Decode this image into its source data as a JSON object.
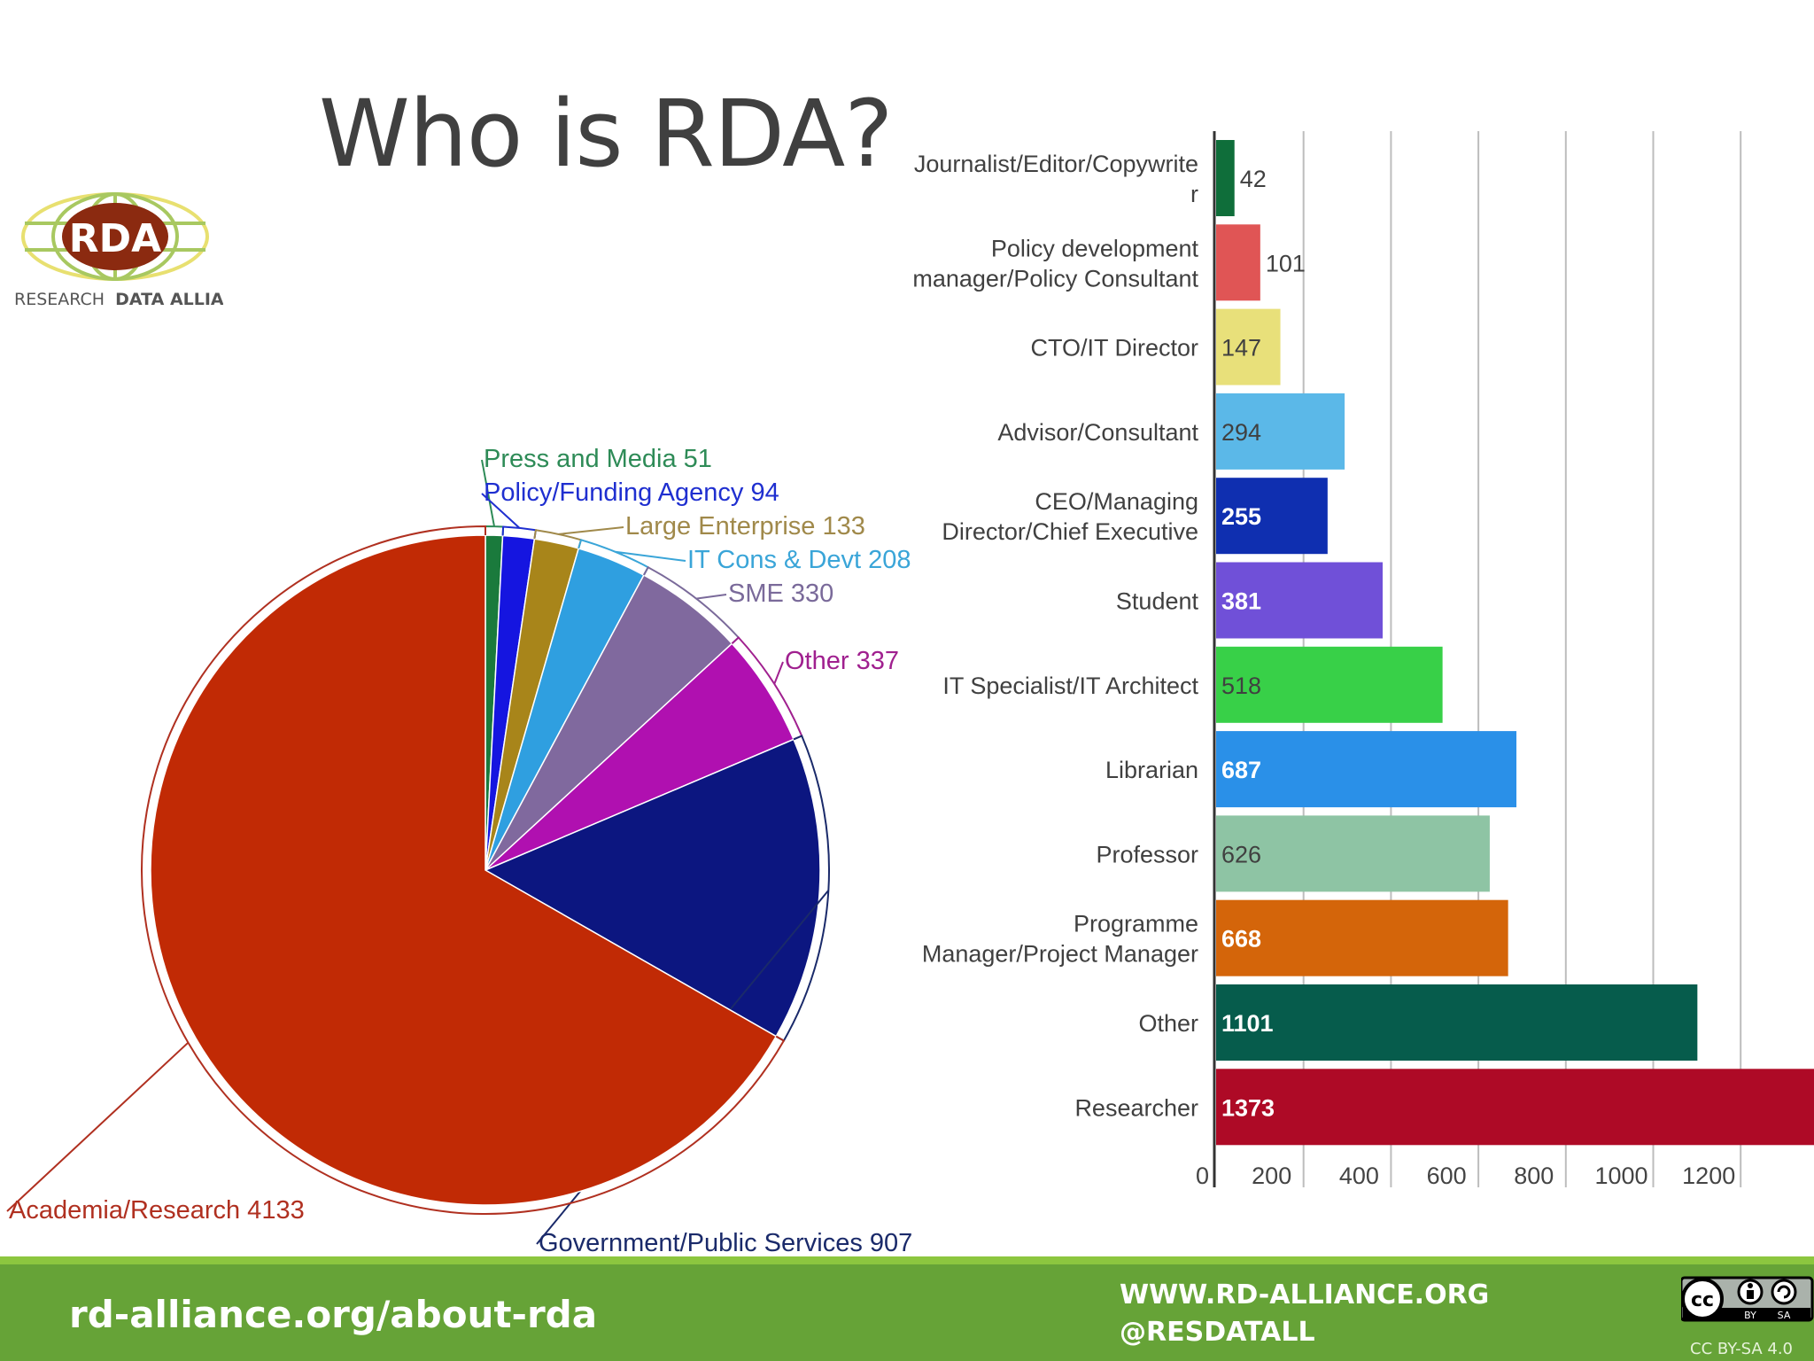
{
  "slide": {
    "title": "Who is RDA?"
  },
  "logo": {
    "abbr": "RDA",
    "name_light": "RESEARCH",
    "name_bold": "DATA ALLIANCE"
  },
  "footer": {
    "url": "rd-alliance.org/about-rda",
    "website": "WWW.RD-ALLIANCE.ORG",
    "handle": "@RESDATALL",
    "license": "CC BY-SA 4.0",
    "license_badge_by": "BY",
    "license_badge_sa": "SA"
  },
  "colors": {
    "footer_green": "#66a337",
    "footer_stripe": "#8cc63f"
  },
  "chart_data": [
    {
      "type": "pie",
      "title": "",
      "slices": [
        {
          "label": "Press and Media 51",
          "value": 51,
          "color": "#1a7a3c",
          "label_color": "#2e8b57"
        },
        {
          "label": "Policy/Funding Agency 94",
          "value": 94,
          "color": "#1515e0",
          "label_color": "#1f2fd0"
        },
        {
          "label": "Large Enterprise 133",
          "value": 133,
          "color": "#a8851a",
          "label_color": "#a0894a"
        },
        {
          "label": "IT Cons & Devt 208",
          "value": 208,
          "color": "#2f9fe0",
          "label_color": "#3aa5d8"
        },
        {
          "label": "SME 330",
          "value": 330,
          "color": "#80699e",
          "label_color": "#7a6a9a"
        },
        {
          "label": "Other 337",
          "value": 337,
          "color": "#b010b0",
          "label_color": "#a0208f"
        },
        {
          "label": "Government/Public Services 907",
          "value": 907,
          "color": "#0c1680",
          "label_color": "#1a2a6a"
        },
        {
          "label": "Academia/Research 4133",
          "value": 4133,
          "color": "#c12a05",
          "label_color": "#b03020"
        }
      ]
    },
    {
      "type": "bar",
      "orientation": "horizontal",
      "title": "",
      "xlim": [
        0,
        1373
      ],
      "xticks": [
        0,
        200,
        400,
        600,
        800,
        1000,
        1200
      ],
      "grid": true,
      "bars": [
        {
          "label": [
            "Journalist/Editor/Copywrite",
            "r"
          ],
          "value": 42,
          "color": "#0f6e3a",
          "label_color": "#404040",
          "value_label": "42"
        },
        {
          "label": [
            "Policy development",
            "manager/Policy Consultant"
          ],
          "value": 101,
          "color": "#e05555",
          "label_color": "#404040",
          "value_label": "101"
        },
        {
          "label": [
            "CTO/IT Director"
          ],
          "value": 147,
          "color": "#e8e07a",
          "label_color": "#404040",
          "value_label": "147"
        },
        {
          "label": [
            "Advisor/Consultant"
          ],
          "value": 294,
          "color": "#5bb8e8",
          "label_color": "#404040",
          "value_label": "294"
        },
        {
          "label": [
            "CEO/Managing",
            "Director/Chief Executive"
          ],
          "value": 255,
          "color": "#0f2fb0",
          "label_color": "#ffffff",
          "value_label": "255"
        },
        {
          "label": [
            "Student"
          ],
          "value": 381,
          "color": "#7050d8",
          "label_color": "#ffffff",
          "value_label": "381"
        },
        {
          "label": [
            "IT Specialist/IT Architect"
          ],
          "value": 518,
          "color": "#38d048",
          "label_color": "#404040",
          "value_label": "518"
        },
        {
          "label": [
            "Librarian"
          ],
          "value": 687,
          "color": "#2a90e8",
          "label_color": "#ffffff",
          "value_label": "687"
        },
        {
          "label": [
            "Professor"
          ],
          "value": 626,
          "color": "#8ec4a4",
          "label_color": "#404040",
          "value_label": "626"
        },
        {
          "label": [
            "Programme",
            "Manager/Project Manager"
          ],
          "value": 668,
          "color": "#d4650a",
          "label_color": "#ffffff",
          "value_label": "668"
        },
        {
          "label": [
            "Other"
          ],
          "value": 1101,
          "color": "#065c4c",
          "label_color": "#ffffff",
          "value_label": "1101"
        },
        {
          "label": [
            "Researcher"
          ],
          "value": 1373,
          "color": "#ae0a26",
          "label_color": "#ffffff",
          "value_label": "1373"
        }
      ]
    }
  ]
}
